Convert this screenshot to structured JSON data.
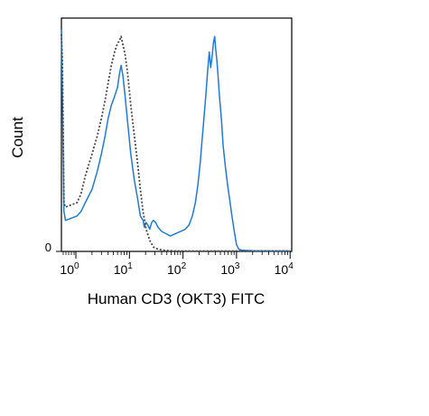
{
  "chart_data": {
    "type": "line",
    "xlabel": "Human CD3 (OKT3) FITC",
    "ylabel": "Count",
    "x_scale": "biexponential (log-like)",
    "xlim": [
      0,
      10000
    ],
    "x_ticks": [
      {
        "base": "10",
        "exp": "0",
        "value": 1
      },
      {
        "base": "10",
        "exp": "1",
        "value": 10
      },
      {
        "base": "10",
        "exp": "2",
        "value": 100
      },
      {
        "base": "10",
        "exp": "3",
        "value": 1000
      },
      {
        "base": "10",
        "exp": "4",
        "value": 10000
      }
    ],
    "y_ticks": [
      {
        "label": "0",
        "value": 0
      }
    ],
    "ylim": [
      0,
      100
    ],
    "grid": false,
    "legend": "none",
    "series": [
      {
        "style": "solid",
        "color": "#1f7bd6",
        "points": [
          [
            0.5,
            100
          ],
          [
            0.6,
            70
          ],
          [
            0.75,
            18
          ],
          [
            0.9,
            14
          ],
          [
            1.05,
            16
          ],
          [
            1.25,
            18
          ],
          [
            1.5,
            22
          ],
          [
            2.0,
            28
          ],
          [
            2.5,
            36
          ],
          [
            3.0,
            44
          ],
          [
            3.5,
            52
          ],
          [
            4.0,
            60
          ],
          [
            4.6,
            66
          ],
          [
            5.3,
            70
          ],
          [
            6.0,
            74
          ],
          [
            6.5,
            80
          ],
          [
            7.0,
            84
          ],
          [
            7.6,
            79
          ],
          [
            8.3,
            70
          ],
          [
            9.3,
            58
          ],
          [
            10.6,
            44
          ],
          [
            12.4,
            32
          ],
          [
            14.2,
            24
          ],
          [
            16.0,
            16
          ],
          [
            18.0,
            14
          ],
          [
            19.0,
            11
          ],
          [
            20.5,
            13
          ],
          [
            22.0,
            12
          ],
          [
            24.0,
            10
          ],
          [
            26.0,
            13
          ],
          [
            28.0,
            14
          ],
          [
            31.0,
            13
          ],
          [
            34.0,
            11
          ],
          [
            40.0,
            9
          ],
          [
            48.0,
            8
          ],
          [
            58.0,
            7
          ],
          [
            72.0,
            8
          ],
          [
            90.0,
            9
          ],
          [
            110.0,
            10
          ],
          [
            130.0,
            12
          ],
          [
            150.0,
            16
          ],
          [
            170.0,
            22
          ],
          [
            190.0,
            30
          ],
          [
            210.0,
            40
          ],
          [
            230.0,
            52
          ],
          [
            250.0,
            62
          ],
          [
            270.0,
            72
          ],
          [
            290.0,
            82
          ],
          [
            310.0,
            90
          ],
          [
            330.0,
            83
          ],
          [
            350.0,
            88
          ],
          [
            370.0,
            94
          ],
          [
            390.0,
            97
          ],
          [
            410.0,
            91
          ],
          [
            430.0,
            86
          ],
          [
            450.0,
            80
          ],
          [
            480.0,
            70
          ],
          [
            520.0,
            60
          ],
          [
            560.0,
            48
          ],
          [
            620.0,
            38
          ],
          [
            680.0,
            30
          ],
          [
            740.0,
            24
          ],
          [
            820.0,
            16
          ],
          [
            920.0,
            8
          ],
          [
            1000.0,
            3
          ],
          [
            1100.0,
            1
          ],
          [
            1300.0,
            0.5
          ],
          [
            2000.0,
            0.3
          ],
          [
            5000.0,
            0.2
          ],
          [
            10000.0,
            0.2
          ]
        ]
      },
      {
        "style": "dotted",
        "color": "#4a4a4a",
        "points": [
          [
            0.5,
            98
          ],
          [
            0.6,
            85
          ],
          [
            0.75,
            22
          ],
          [
            0.9,
            20
          ],
          [
            1.05,
            22
          ],
          [
            1.25,
            26
          ],
          [
            1.5,
            34
          ],
          [
            2.0,
            44
          ],
          [
            2.5,
            52
          ],
          [
            3.0,
            60
          ],
          [
            3.5,
            68
          ],
          [
            4.0,
            76
          ],
          [
            4.6,
            84
          ],
          [
            5.3,
            90
          ],
          [
            6.0,
            94
          ],
          [
            6.5,
            95
          ],
          [
            7.0,
            97
          ],
          [
            7.6,
            93
          ],
          [
            8.3,
            89
          ],
          [
            9.3,
            80
          ],
          [
            10.6,
            66
          ],
          [
            12.4,
            52
          ],
          [
            14.2,
            40
          ],
          [
            16.0,
            28
          ],
          [
            18.0,
            18
          ],
          [
            20.5,
            10
          ],
          [
            24.0,
            5
          ],
          [
            28.0,
            2
          ],
          [
            34.0,
            1
          ],
          [
            45.0,
            0.5
          ],
          [
            70.0,
            0.2
          ],
          [
            10000.0,
            0.2
          ]
        ]
      }
    ]
  }
}
